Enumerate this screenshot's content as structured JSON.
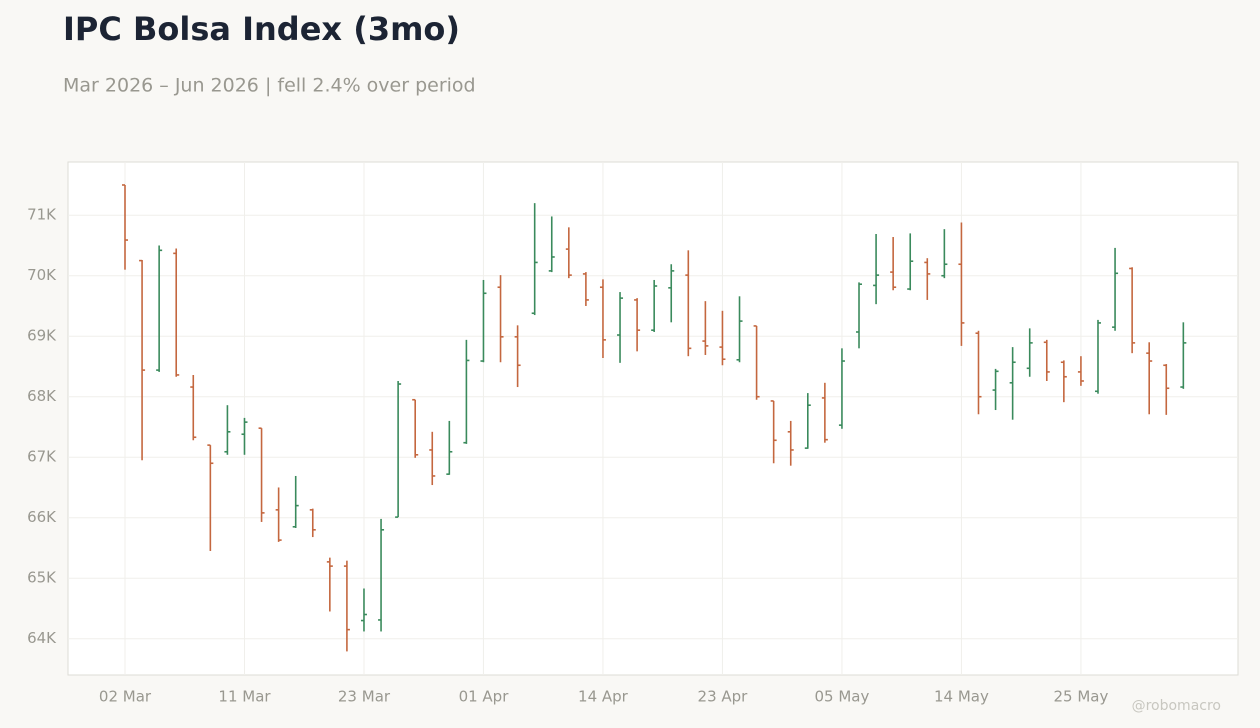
{
  "chart_data": {
    "type": "ohlc",
    "title": "IPC Bolsa Index (3mo)",
    "subtitle": "Mar 2026 – Jun 2026 | fell 2.4% over period",
    "watermark": "@robomacro",
    "categories": [
      "02 Mar",
      null,
      null,
      null,
      null,
      null,
      null,
      "11 Mar",
      null,
      null,
      null,
      null,
      null,
      null,
      "23 Mar",
      null,
      null,
      null,
      null,
      null,
      null,
      "01 Apr",
      null,
      null,
      null,
      null,
      null,
      null,
      "14 Apr",
      null,
      null,
      null,
      null,
      null,
      null,
      "23 Apr",
      null,
      null,
      null,
      null,
      null,
      null,
      "05 May",
      null,
      null,
      null,
      null,
      null,
      null,
      "14 May",
      null,
      null,
      null,
      null,
      null,
      null,
      "25 May",
      null,
      null,
      null,
      null,
      null,
      null
    ],
    "open": [
      71500,
      70250,
      68440,
      70370,
      68160,
      67200,
      67090,
      67380,
      67480,
      66130,
      65850,
      66130,
      65270,
      65200,
      64300,
      64310,
      66010,
      67950,
      67120,
      66720,
      67240,
      68590,
      69810,
      68990,
      69380,
      70080,
      70440,
      70030,
      69810,
      69020,
      69600,
      69100,
      69800,
      70010,
      68920,
      68820,
      68610,
      69170,
      67930,
      67420,
      67150,
      67980,
      67530,
      69070,
      69840,
      70060,
      69780,
      70220,
      70000,
      70190,
      69050,
      68110,
      68230,
      68470,
      68900,
      68570,
      68410,
      68090,
      69150,
      70120,
      68720,
      68520,
      68160
    ],
    "high": [
      71500,
      70260,
      70500,
      70450,
      68360,
      67200,
      67860,
      67650,
      67480,
      66500,
      66690,
      66150,
      65340,
      65290,
      64830,
      65980,
      68260,
      67950,
      67420,
      67600,
      68940,
      69930,
      70010,
      69180,
      71200,
      70980,
      70800,
      70060,
      69940,
      69730,
      69630,
      69930,
      70190,
      70420,
      69580,
      69420,
      69660,
      69170,
      67930,
      67600,
      68060,
      68230,
      68800,
      69890,
      70690,
      70640,
      70700,
      70290,
      70770,
      70880,
      69090,
      68460,
      68820,
      69130,
      68940,
      68600,
      68670,
      69270,
      70460,
      70140,
      68900,
      68540,
      69230
    ],
    "low": [
      70100,
      66950,
      68410,
      68330,
      67280,
      65450,
      67040,
      67040,
      65930,
      65600,
      65830,
      65680,
      64450,
      63790,
      64120,
      64120,
      66010,
      66990,
      66540,
      66710,
      67220,
      68570,
      68570,
      68160,
      69350,
      70060,
      69960,
      69500,
      68640,
      68560,
      68750,
      69070,
      69230,
      68670,
      68690,
      68520,
      68570,
      67950,
      66900,
      66860,
      67140,
      67240,
      67470,
      68800,
      69530,
      69760,
      69760,
      69600,
      69960,
      68840,
      67710,
      67780,
      67620,
      68330,
      68260,
      67910,
      68180,
      68050,
      69090,
      68720,
      67710,
      67700,
      68130
    ],
    "close": [
      70590,
      68440,
      70420,
      68360,
      67330,
      66900,
      67420,
      67580,
      66080,
      65630,
      66200,
      65800,
      65200,
      64150,
      64400,
      65800,
      68210,
      67040,
      66690,
      67090,
      68600,
      69710,
      68990,
      68520,
      70220,
      70310,
      70010,
      69600,
      68940,
      69630,
      69100,
      69830,
      70080,
      68800,
      68840,
      68620,
      69250,
      68000,
      67280,
      67120,
      67860,
      67290,
      68590,
      69860,
      70010,
      69810,
      70240,
      70030,
      70190,
      69220,
      68000,
      68420,
      68570,
      68890,
      68410,
      68330,
      68260,
      69220,
      70040,
      68890,
      68590,
      68140,
      68890
    ],
    "up_color": "#3a8a5c",
    "down_color": "#c4673f",
    "ylim": [
      63400,
      71880
    ],
    "yticks": [
      {
        "value": 64000,
        "label": "64K"
      },
      {
        "value": 65000,
        "label": "65K"
      },
      {
        "value": 66000,
        "label": "66K"
      },
      {
        "value": 67000,
        "label": "67K"
      },
      {
        "value": 68000,
        "label": "68K"
      },
      {
        "value": 69000,
        "label": "69K"
      },
      {
        "value": 70000,
        "label": "70K"
      },
      {
        "value": 71000,
        "label": "71K"
      }
    ],
    "grid": true
  }
}
